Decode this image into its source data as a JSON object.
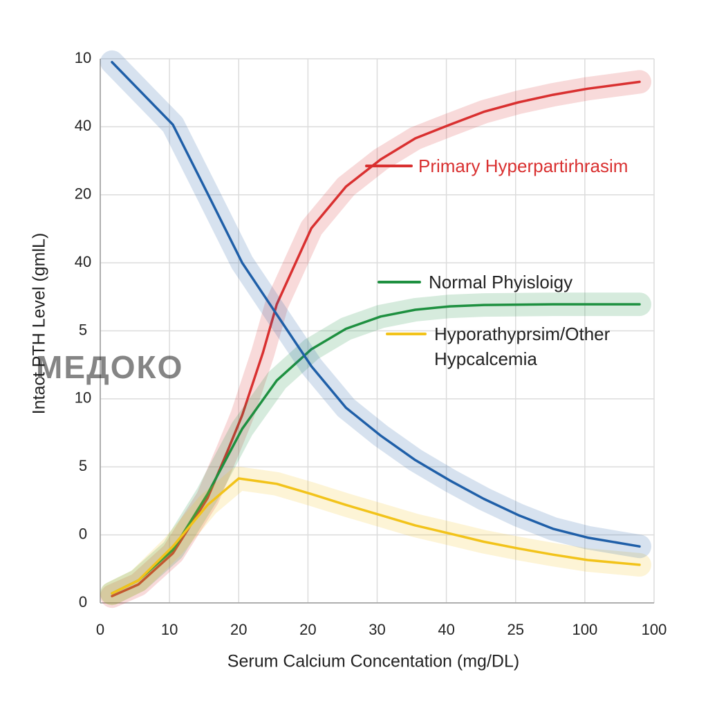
{
  "chart_data": {
    "type": "line",
    "xlabel": "Serum Calcium Concentation (mg/DL)",
    "ylabel": "Intact PTH Level (gmlL)",
    "watermark": "МЕДОКО",
    "xlim": [
      0,
      8
    ],
    "ylim": [
      0,
      8
    ],
    "xticks": [
      0,
      {
        "value": 1,
        "label": "10"
      },
      {
        "value": 2,
        "label": "20"
      },
      {
        "value": 3,
        "label": "20"
      },
      {
        "value": 4,
        "label": "30"
      },
      {
        "value": 5,
        "label": "40"
      },
      {
        "value": 6,
        "label": "25"
      },
      {
        "value": 7,
        "label": "100"
      },
      {
        "value": 8,
        "label": "100"
      }
    ],
    "yticks": [
      0,
      {
        "value": 1,
        "label": "0"
      },
      {
        "value": 2,
        "label": "5"
      },
      {
        "value": 3,
        "label": "10"
      },
      {
        "value": 4,
        "label": "5"
      },
      {
        "value": 5,
        "label": "40"
      },
      {
        "value": 6,
        "label": "20"
      },
      {
        "value": 7,
        "label": "40"
      },
      {
        "value": 8,
        "label": "10"
      }
    ],
    "grid": true,
    "series": [
      {
        "name": "Primary Hyperpartirhrasim",
        "color": "#d93030",
        "x": [
          0.17,
          0.55,
          1.05,
          1.55,
          1.85,
          2.05,
          2.35,
          2.55,
          3.05,
          3.55,
          4.05,
          4.55,
          5.05,
          5.54,
          6.04,
          6.54,
          7.04,
          7.79
        ],
        "values": [
          0.1,
          0.27,
          0.73,
          1.54,
          2.26,
          2.76,
          3.68,
          4.39,
          5.51,
          6.12,
          6.52,
          6.83,
          7.03,
          7.22,
          7.36,
          7.47,
          7.56,
          7.66
        ]
      },
      {
        "name": "Normal Phyisloigy",
        "color": "#1e9040",
        "x": [
          0.17,
          0.55,
          1.05,
          1.55,
          2.05,
          2.55,
          3.05,
          3.55,
          4.05,
          4.55,
          5.05,
          5.54,
          6.54,
          7.79
        ],
        "values": [
          0.14,
          0.33,
          0.78,
          1.6,
          2.56,
          3.27,
          3.73,
          4.03,
          4.21,
          4.31,
          4.36,
          4.38,
          4.39,
          4.39
        ]
      },
      {
        "name": "Hyporathyprsim/Other Hypcalcemia",
        "color": "#f2c31a",
        "x": [
          0.17,
          0.55,
          1.05,
          1.55,
          2.0,
          2.55,
          3.05,
          3.55,
          4.05,
          4.55,
          5.05,
          5.54,
          6.04,
          6.54,
          7.04,
          7.79
        ],
        "values": [
          0.14,
          0.33,
          0.83,
          1.44,
          1.83,
          1.75,
          1.6,
          1.44,
          1.29,
          1.14,
          1.02,
          0.9,
          0.8,
          0.71,
          0.63,
          0.56
        ]
      },
      {
        "color": "#1f5fa8",
        "x": [
          0.17,
          1.05,
          1.55,
          2.05,
          2.55,
          3.05,
          3.55,
          4.05,
          4.55,
          5.05,
          5.54,
          6.04,
          6.54,
          7.04,
          7.79
        ],
        "values": [
          7.95,
          7.03,
          6.02,
          5.0,
          4.24,
          3.48,
          2.87,
          2.46,
          2.1,
          1.8,
          1.53,
          1.29,
          1.09,
          0.96,
          0.83
        ]
      }
    ]
  }
}
